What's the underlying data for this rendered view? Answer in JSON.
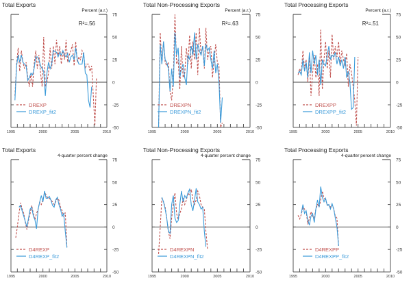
{
  "colors": {
    "actual": "#c0504d",
    "fitted": "#3a9ad9",
    "axis": "#555555",
    "zero": "#444444"
  },
  "chart_data": [
    {
      "type": "line",
      "title": "Total Exports",
      "unit_label": "Percent (a.r.)",
      "r_squared": "R²=.56",
      "ylim": [
        -50,
        75
      ],
      "yticks": [
        75,
        50,
        25,
        0,
        -25,
        -50
      ],
      "xlim": [
        1995,
        2010
      ],
      "xticks": [
        1995,
        2000,
        2005,
        2010
      ],
      "start": 1995.625,
      "step": 0.25,
      "series": [
        {
          "name": "DREXP",
          "style": "dashed",
          "values": [
            -15,
            20,
            38,
            12,
            35,
            22,
            15,
            22,
            5,
            -5,
            10,
            -5,
            20,
            35,
            15,
            30,
            10,
            -5,
            50,
            -5,
            0,
            10,
            38,
            15,
            40,
            20,
            47,
            28,
            40,
            20,
            35,
            25,
            47,
            22,
            30,
            35,
            42,
            18,
            45,
            22,
            28,
            25,
            35,
            30,
            15,
            20,
            20,
            12,
            18,
            -15,
            -48,
            5
          ]
        },
        {
          "name": "DREXP_fit2",
          "style": "solid",
          "values": [
            -20,
            18,
            30,
            22,
            30,
            22,
            20,
            18,
            2,
            5,
            10,
            8,
            15,
            28,
            28,
            25,
            18,
            15,
            12,
            -15,
            10,
            22,
            15,
            20,
            35,
            34,
            33,
            28,
            33,
            30,
            35,
            30,
            28,
            32,
            22,
            28,
            30,
            25,
            38,
            25,
            20,
            20,
            20,
            33,
            10,
            8,
            -20,
            -28,
            -5
          ]
        }
      ]
    },
    {
      "type": "line",
      "title": "Total Non-Processing Exports",
      "unit_label": "Percent (a.r.)",
      "r_squared": "R²=.63",
      "ylim": [
        -50,
        75
      ],
      "yticks": [
        75,
        50,
        25,
        0,
        -25,
        -50
      ],
      "xlim": [
        1995,
        2010
      ],
      "xticks": [
        1995,
        2000,
        2005,
        2010
      ],
      "start": 1996.0,
      "step": 0.25,
      "series": [
        {
          "name": "DREXPN",
          "style": "dashed",
          "values": [
            -50,
            55,
            20,
            45,
            22,
            18,
            22,
            -10,
            -20,
            5,
            75,
            20,
            25,
            -8,
            40,
            5,
            10,
            38,
            20,
            52,
            15,
            45,
            25,
            55,
            8,
            60,
            30,
            40,
            15,
            60,
            25,
            35,
            40,
            5,
            25,
            42,
            22,
            18,
            -50,
            -45
          ]
        },
        {
          "name": "DREXPN_fit2",
          "style": "solid",
          "values": [
            -50,
            42,
            20,
            45,
            25,
            22,
            15,
            -10,
            15,
            -5,
            55,
            30,
            38,
            5,
            15,
            20,
            5,
            -3,
            30,
            25,
            40,
            30,
            55,
            25,
            42,
            35,
            30,
            40,
            18,
            42,
            35,
            38,
            25,
            15,
            35,
            10,
            20,
            0,
            -45,
            -17
          ]
        }
      ]
    },
    {
      "type": "line",
      "title": "Total Processing Exports",
      "unit_label": "Percent (a.r.)",
      "r_squared": "R²=.51",
      "ylim": [
        -50,
        75
      ],
      "yticks": [
        75,
        50,
        25,
        0,
        -25,
        -50
      ],
      "xlim": [
        1995,
        2010
      ],
      "xticks": [
        1995,
        2000,
        2005,
        2010
      ],
      "start": 1995.75,
      "step": 0.25,
      "series": [
        {
          "name": "DREXPP",
          "style": "dashed",
          "values": [
            8,
            15,
            10,
            35,
            15,
            25,
            0,
            30,
            -15,
            10,
            30,
            5,
            20,
            -15,
            58,
            -8,
            25,
            45,
            15,
            35,
            5,
            53,
            25,
            40,
            28,
            45,
            20,
            35,
            25,
            18,
            32,
            -5,
            20,
            10,
            -5,
            -20,
            -48,
            28
          ]
        },
        {
          "name": "DREXPP_fit2",
          "style": "solid",
          "values": [
            10,
            12,
            8,
            25,
            12,
            22,
            5,
            33,
            10,
            35,
            20,
            30,
            8,
            25,
            -3,
            25,
            20,
            18,
            30,
            40,
            25,
            30,
            28,
            33,
            20,
            28,
            18,
            25,
            15,
            28,
            5,
            12,
            0,
            -30,
            -28,
            28
          ]
        }
      ]
    },
    {
      "type": "line",
      "title": "Total Exports",
      "unit_label": "4-quarter percent change",
      "ylim": [
        -50,
        75
      ],
      "yticks": [
        75,
        50,
        25,
        0,
        -25,
        -50
      ],
      "xlim": [
        1995,
        2010
      ],
      "xticks": [
        1995,
        2000,
        2005,
        2010
      ],
      "start": 1995.75,
      "step": 0.25,
      "series": [
        {
          "name": "D4REXP",
          "style": "dashed",
          "values": [
            -12,
            0,
            15,
            27,
            20,
            15,
            5,
            -3,
            8,
            15,
            24,
            15,
            8,
            15,
            20,
            28,
            25,
            30,
            38,
            36,
            32,
            32,
            30,
            28,
            25,
            28,
            32,
            30,
            22,
            18,
            12,
            16,
            -22
          ]
        },
        {
          "name": "D4REXP_fit2",
          "style": "solid",
          "values": [
            null,
            null,
            22,
            24,
            18,
            12,
            6,
            0,
            10,
            20,
            22,
            12,
            8,
            -2,
            20,
            28,
            35,
            28,
            40,
            32,
            32,
            34,
            30,
            24,
            22,
            30,
            33,
            25,
            20,
            12,
            15,
            -5,
            -23
          ]
        }
      ]
    },
    {
      "type": "line",
      "title": "Total Non-Processing Exports",
      "unit_label": "4-quarter percent change",
      "ylim": [
        -50,
        75
      ],
      "yticks": [
        75,
        50,
        25,
        0,
        -25,
        -50
      ],
      "xlim": [
        1995,
        2010
      ],
      "xticks": [
        1995,
        2000,
        2005,
        2010
      ],
      "start": 1996.0,
      "step": 0.25,
      "series": [
        {
          "name": "D4REXPN",
          "style": "dashed",
          "values": [
            -30,
            0,
            32,
            28,
            22,
            10,
            -5,
            -13,
            10,
            25,
            38,
            15,
            8,
            15,
            20,
            32,
            25,
            30,
            38,
            35,
            42,
            30,
            25,
            30,
            40,
            35,
            25,
            22,
            20,
            -5,
            -25
          ]
        },
        {
          "name": "D4REXPN_fit2",
          "style": "solid",
          "values": [
            null,
            null,
            33,
            28,
            20,
            10,
            -5,
            -7,
            25,
            35,
            10,
            5,
            7,
            25,
            40,
            28,
            35,
            32,
            38,
            42,
            25,
            18,
            30,
            43,
            28,
            25,
            20,
            22,
            -5,
            -22
          ]
        }
      ]
    },
    {
      "type": "line",
      "title": "Total Processing Exports",
      "unit_label": "4-quarter percent change",
      "ylim": [
        -50,
        75
      ],
      "yticks": [
        75,
        50,
        25,
        0,
        -25,
        -50
      ],
      "xlim": [
        1995,
        2010
      ],
      "xticks": [
        1995,
        2000,
        2005,
        2010
      ],
      "start": 1995.75,
      "step": 0.25,
      "series": [
        {
          "name": "D4REXPP",
          "style": "dashed",
          "values": [
            13,
            9,
            14,
            22,
            20,
            18,
            3,
            10,
            17,
            12,
            10,
            20,
            25,
            22,
            30,
            40,
            32,
            30,
            25,
            24,
            22,
            25,
            20,
            12,
            10,
            -22
          ]
        },
        {
          "name": "D4REXPP_fit2",
          "style": "solid",
          "values": [
            null,
            null,
            15,
            25,
            15,
            18,
            8,
            2,
            12,
            15,
            5,
            20,
            30,
            22,
            45,
            33,
            28,
            32,
            24,
            25,
            20,
            26,
            20,
            10,
            0,
            -21
          ]
        }
      ]
    }
  ]
}
